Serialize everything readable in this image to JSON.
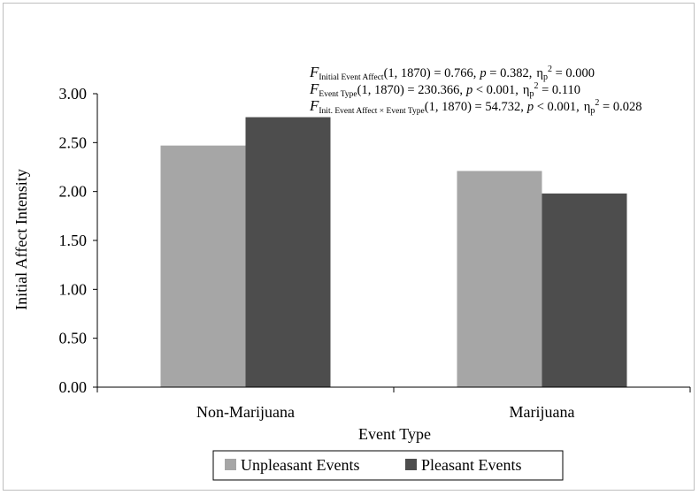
{
  "chart_data": {
    "type": "bar",
    "categories": [
      "Non-Marijuana",
      "Marijuana"
    ],
    "series": [
      {
        "name": "Unpleasant Events",
        "values": [
          2.47,
          2.21
        ],
        "color": "#a6a6a6"
      },
      {
        "name": "Pleasant Events",
        "values": [
          2.76,
          1.98
        ],
        "color": "#4d4d4d"
      }
    ],
    "title": "",
    "xlabel": "Event Type",
    "ylabel": "Initial Affect Intensity",
    "ylim": [
      0,
      3
    ],
    "yticks": [
      "0.00",
      "0.50",
      "1.00",
      "1.50",
      "2.00",
      "2.50",
      "3.00"
    ],
    "grid": false,
    "legend_position": "bottom",
    "annotations": [
      {
        "F": "F",
        "subscript": "Initial Event Affect",
        "test": "(1, 1870) = 0.766,",
        "p_label": "p",
        "p_value": " = 0.382,",
        "eta": "η",
        "eta_sub": "p",
        "eta_sup": "2",
        "eta_value": " = 0.000"
      },
      {
        "F": "F",
        "subscript": "Event Type",
        "test": "(1, 1870) = 230.366,",
        "p_label": "p",
        "p_value": " < 0.001,",
        "eta": "η",
        "eta_sub": "p",
        "eta_sup": "2",
        "eta_value": " = 0.110"
      },
      {
        "F": "F",
        "subscript": "Init. Event Affect × Event Type",
        "test": "(1, 1870) = 54.732,",
        "p_label": "p",
        "p_value": " < 0.001,",
        "eta": "η",
        "eta_sub": "p",
        "eta_sup": "2",
        "eta_value": " = 0.028"
      }
    ]
  }
}
